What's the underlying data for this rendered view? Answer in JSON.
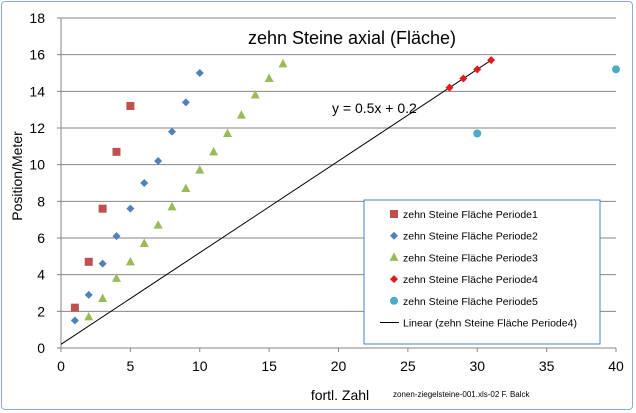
{
  "chart_data": {
    "type": "scatter",
    "title": "zehn Steine axial (Fläche)",
    "xlabel": "fortl. Zahl",
    "ylabel": "Position/Meter",
    "xlim": [
      0,
      40
    ],
    "ylim": [
      0,
      18
    ],
    "x_ticks": [
      "0",
      "5",
      "10",
      "15",
      "20",
      "25",
      "30",
      "35",
      "40"
    ],
    "y_ticks": [
      "0",
      "2",
      "4",
      "6",
      "8",
      "10",
      "12",
      "14",
      "16",
      "18"
    ],
    "grid": "horizontal",
    "legend_position": "lower-right",
    "annotation": "y = 0.5x + 0.2",
    "credit": "zonen-ziegelsteine-001.xls-02  F. Balck",
    "series": [
      {
        "name": "zehn Steine Fläche Periode1",
        "marker": "square",
        "color": "#c0504d",
        "points": [
          [
            1,
            2.2
          ],
          [
            2,
            4.7
          ],
          [
            3,
            7.6
          ],
          [
            4,
            10.7
          ],
          [
            5,
            13.2
          ]
        ]
      },
      {
        "name": "zehn Steine Fläche Periode2",
        "marker": "diamond",
        "color": "#4f81bd",
        "points": [
          [
            1,
            1.5
          ],
          [
            2,
            2.9
          ],
          [
            3,
            4.6
          ],
          [
            4,
            6.1
          ],
          [
            5,
            7.6
          ],
          [
            6,
            9.0
          ],
          [
            7,
            10.2
          ],
          [
            8,
            11.8
          ],
          [
            9,
            13.4
          ],
          [
            10,
            15.0
          ]
        ]
      },
      {
        "name": "zehn Steine Fläche Periode3",
        "marker": "triangle",
        "color": "#9bbb59",
        "points": [
          [
            2,
            1.7
          ],
          [
            3,
            2.7
          ],
          [
            4,
            3.8
          ],
          [
            5,
            4.7
          ],
          [
            6,
            5.7
          ],
          [
            7,
            6.7
          ],
          [
            8,
            7.7
          ],
          [
            9,
            8.7
          ],
          [
            10,
            9.7
          ],
          [
            11,
            10.7
          ],
          [
            12,
            11.7
          ],
          [
            13,
            12.7
          ],
          [
            14,
            13.8
          ],
          [
            15,
            14.7
          ],
          [
            16,
            15.5
          ]
        ]
      },
      {
        "name": "zehn Steine Fläche Periode4",
        "marker": "diamond",
        "color": "#e31a1c",
        "points": [
          [
            28,
            14.2
          ],
          [
            29,
            14.7
          ],
          [
            30,
            15.2
          ],
          [
            31,
            15.7
          ]
        ]
      },
      {
        "name": "zehn Steine Fläche Periode5",
        "marker": "circle",
        "color": "#4bacc6",
        "points": [
          [
            30,
            11.7
          ],
          [
            40,
            15.2
          ]
        ]
      }
    ],
    "trendline": {
      "name": "Linear (zehn Steine Fläche Periode4)",
      "slope": 0.5,
      "intercept": 0.2,
      "x_range": [
        0,
        31
      ],
      "color": "#000000"
    }
  }
}
